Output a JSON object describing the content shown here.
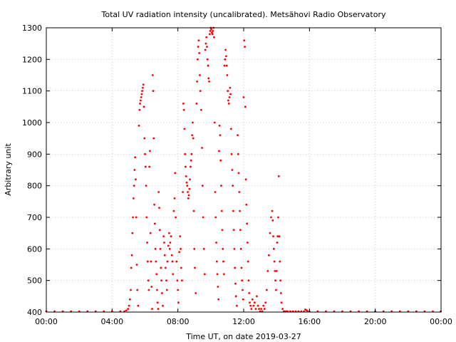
{
  "chart_data": {
    "type": "scatter",
    "title": "Total UV radiation intensity (uncalibrated). Metsähovi Radio Observatory",
    "xlabel": "Time UT, on date 2019-03-27",
    "ylabel": "Arbitrary unit",
    "xlim": [
      "00:00",
      "00:00"
    ],
    "ylim": [
      400,
      1300
    ],
    "x_ticks": [
      "00:00",
      "04:00",
      "08:00",
      "12:00",
      "16:00",
      "20:00",
      "00:00"
    ],
    "y_ticks": [
      400,
      500,
      600,
      700,
      800,
      900,
      1000,
      1100,
      1200,
      1300
    ],
    "grid": true,
    "marker_color": "#ff0000",
    "series": [
      {
        "points": [
          [
            "00:00",
            400
          ],
          [
            "00:30",
            400
          ],
          [
            "01:00",
            400
          ],
          [
            "01:30",
            400
          ],
          [
            "02:00",
            400
          ],
          [
            "02:30",
            400
          ],
          [
            "03:00",
            400
          ],
          [
            "03:30",
            400
          ],
          [
            "04:00",
            400
          ],
          [
            "04:30",
            400
          ],
          [
            "04:45",
            402
          ],
          [
            "04:52",
            405
          ],
          [
            "04:58",
            410
          ],
          [
            "05:02",
            420
          ],
          [
            "05:05",
            440
          ],
          [
            "05:08",
            470
          ],
          [
            "05:10",
            540
          ],
          [
            "05:12",
            580
          ],
          [
            "05:14",
            650
          ],
          [
            "05:16",
            700
          ],
          [
            "05:18",
            760
          ],
          [
            "05:20",
            800
          ],
          [
            "05:22",
            850
          ],
          [
            "05:24",
            890
          ],
          [
            "05:26",
            820
          ],
          [
            "05:28",
            700
          ],
          [
            "05:30",
            550
          ],
          [
            "05:32",
            470
          ],
          [
            "05:35",
            420
          ],
          [
            "05:38",
            990
          ],
          [
            "05:40",
            1040
          ],
          [
            "05:42",
            1060
          ],
          [
            "05:44",
            1070
          ],
          [
            "05:46",
            1080
          ],
          [
            "05:48",
            1090
          ],
          [
            "05:50",
            1100
          ],
          [
            "05:52",
            1110
          ],
          [
            "05:54",
            1120
          ],
          [
            "05:56",
            1050
          ],
          [
            "05:58",
            950
          ],
          [
            "06:00",
            900
          ],
          [
            "06:02",
            860
          ],
          [
            "06:04",
            800
          ],
          [
            "06:06",
            700
          ],
          [
            "06:08",
            620
          ],
          [
            "06:10",
            560
          ],
          [
            "06:12",
            500
          ],
          [
            "06:14",
            470
          ],
          [
            "06:16",
            860
          ],
          [
            "06:18",
            910
          ],
          [
            "06:20",
            650
          ],
          [
            "06:22",
            560
          ],
          [
            "06:24",
            480
          ],
          [
            "06:26",
            410
          ],
          [
            "06:28",
            1150
          ],
          [
            "06:30",
            1100
          ],
          [
            "06:32",
            950
          ],
          [
            "06:34",
            740
          ],
          [
            "06:36",
            680
          ],
          [
            "06:38",
            600
          ],
          [
            "06:40",
            560
          ],
          [
            "06:42",
            520
          ],
          [
            "06:44",
            470
          ],
          [
            "06:46",
            430
          ],
          [
            "06:48",
            410
          ],
          [
            "06:50",
            780
          ],
          [
            "06:52",
            730
          ],
          [
            "06:54",
            660
          ],
          [
            "06:56",
            600
          ],
          [
            "06:58",
            540
          ],
          [
            "07:00",
            500
          ],
          [
            "07:02",
            460
          ],
          [
            "07:05",
            420
          ],
          [
            "07:08",
            640
          ],
          [
            "07:10",
            620
          ],
          [
            "07:12",
            580
          ],
          [
            "07:15",
            540
          ],
          [
            "07:18",
            500
          ],
          [
            "07:20",
            470
          ],
          [
            "07:22",
            560
          ],
          [
            "07:25",
            610
          ],
          [
            "07:28",
            650
          ],
          [
            "07:30",
            600
          ],
          [
            "07:32",
            620
          ],
          [
            "07:35",
            640
          ],
          [
            "07:38",
            580
          ],
          [
            "07:40",
            560
          ],
          [
            "07:42",
            520
          ],
          [
            "07:45",
            720
          ],
          [
            "07:48",
            760
          ],
          [
            "07:50",
            840
          ],
          [
            "07:52",
            700
          ],
          [
            "07:55",
            560
          ],
          [
            "07:58",
            500
          ],
          [
            "08:00",
            470
          ],
          [
            "08:02",
            430
          ],
          [
            "08:05",
            590
          ],
          [
            "08:08",
            640
          ],
          [
            "08:10",
            600
          ],
          [
            "08:12",
            540
          ],
          [
            "08:15",
            500
          ],
          [
            "08:18",
            780
          ],
          [
            "08:20",
            1060
          ],
          [
            "08:22",
            1040
          ],
          [
            "08:24",
            980
          ],
          [
            "08:26",
            900
          ],
          [
            "08:28",
            860
          ],
          [
            "08:30",
            830
          ],
          [
            "08:32",
            810
          ],
          [
            "08:34",
            800
          ],
          [
            "08:36",
            780
          ],
          [
            "08:38",
            760
          ],
          [
            "08:40",
            770
          ],
          [
            "08:42",
            790
          ],
          [
            "08:44",
            820
          ],
          [
            "08:46",
            860
          ],
          [
            "08:48",
            880
          ],
          [
            "08:50",
            900
          ],
          [
            "08:52",
            960
          ],
          [
            "08:54",
            1000
          ],
          [
            "08:56",
            950
          ],
          [
            "08:58",
            720
          ],
          [
            "09:00",
            600
          ],
          [
            "09:02",
            540
          ],
          [
            "09:05",
            460
          ],
          [
            "09:08",
            1060
          ],
          [
            "09:10",
            1130
          ],
          [
            "09:12",
            1200
          ],
          [
            "09:14",
            1240
          ],
          [
            "09:16",
            1260
          ],
          [
            "09:18",
            1220
          ],
          [
            "09:20",
            1150
          ],
          [
            "09:22",
            1100
          ],
          [
            "09:25",
            1040
          ],
          [
            "09:28",
            920
          ],
          [
            "09:30",
            800
          ],
          [
            "09:32",
            700
          ],
          [
            "09:35",
            600
          ],
          [
            "09:38",
            520
          ],
          [
            "09:40",
            1230
          ],
          [
            "09:42",
            1250
          ],
          [
            "09:44",
            1270
          ],
          [
            "09:46",
            1240
          ],
          [
            "09:48",
            1200
          ],
          [
            "09:50",
            1180
          ],
          [
            "09:52",
            1140
          ],
          [
            "09:54",
            1130
          ],
          [
            "09:56",
            1280
          ],
          [
            "09:58",
            1290
          ],
          [
            "10:00",
            1300
          ],
          [
            "10:02",
            1295
          ],
          [
            "10:04",
            1285
          ],
          [
            "10:06",
            1280
          ],
          [
            "10:08",
            1290
          ],
          [
            "10:10",
            1300
          ],
          [
            "10:12",
            1270
          ],
          [
            "10:14",
            1000
          ],
          [
            "10:16",
            780
          ],
          [
            "10:18",
            700
          ],
          [
            "10:20",
            620
          ],
          [
            "10:22",
            560
          ],
          [
            "10:24",
            520
          ],
          [
            "10:26",
            480
          ],
          [
            "10:28",
            440
          ],
          [
            "10:30",
            910
          ],
          [
            "10:32",
            990
          ],
          [
            "10:34",
            960
          ],
          [
            "10:36",
            880
          ],
          [
            "10:38",
            800
          ],
          [
            "10:40",
            720
          ],
          [
            "10:42",
            660
          ],
          [
            "10:44",
            600
          ],
          [
            "10:46",
            560
          ],
          [
            "10:48",
            520
          ],
          [
            "10:50",
            1180
          ],
          [
            "10:52",
            1200
          ],
          [
            "10:54",
            1230
          ],
          [
            "10:56",
            1210
          ],
          [
            "10:58",
            1180
          ],
          [
            "11:00",
            1150
          ],
          [
            "11:02",
            1100
          ],
          [
            "11:04",
            1070
          ],
          [
            "11:06",
            1060
          ],
          [
            "11:08",
            1080
          ],
          [
            "11:10",
            1110
          ],
          [
            "11:12",
            1090
          ],
          [
            "11:14",
            980
          ],
          [
            "11:16",
            900
          ],
          [
            "11:18",
            850
          ],
          [
            "11:20",
            800
          ],
          [
            "11:22",
            720
          ],
          [
            "11:24",
            660
          ],
          [
            "11:26",
            600
          ],
          [
            "11:28",
            540
          ],
          [
            "11:30",
            490
          ],
          [
            "11:32",
            450
          ],
          [
            "11:35",
            420
          ],
          [
            "11:38",
            960
          ],
          [
            "11:40",
            900
          ],
          [
            "11:42",
            840
          ],
          [
            "11:44",
            780
          ],
          [
            "11:46",
            720
          ],
          [
            "11:48",
            660
          ],
          [
            "11:50",
            600
          ],
          [
            "11:52",
            540
          ],
          [
            "11:54",
            500
          ],
          [
            "11:56",
            470
          ],
          [
            "11:58",
            440
          ],
          [
            "12:00",
            1080
          ],
          [
            "12:02",
            1260
          ],
          [
            "12:04",
            1240
          ],
          [
            "12:06",
            1050
          ],
          [
            "12:08",
            820
          ],
          [
            "12:10",
            740
          ],
          [
            "12:12",
            680
          ],
          [
            "12:14",
            620
          ],
          [
            "12:16",
            560
          ],
          [
            "12:18",
            500
          ],
          [
            "12:20",
            460
          ],
          [
            "12:22",
            430
          ],
          [
            "12:25",
            420
          ],
          [
            "12:28",
            410
          ],
          [
            "12:32",
            440
          ],
          [
            "12:36",
            420
          ],
          [
            "12:40",
            430
          ],
          [
            "12:44",
            410
          ],
          [
            "12:48",
            450
          ],
          [
            "12:52",
            420
          ],
          [
            "12:56",
            410
          ],
          [
            "13:00",
            400
          ],
          [
            "13:04",
            410
          ],
          [
            "13:08",
            400
          ],
          [
            "13:12",
            420
          ],
          [
            "13:16",
            410
          ],
          [
            "13:20",
            430
          ],
          [
            "13:24",
            470
          ],
          [
            "13:28",
            530
          ],
          [
            "13:32",
            580
          ],
          [
            "13:36",
            650
          ],
          [
            "13:40",
            700
          ],
          [
            "13:44",
            720
          ],
          [
            "13:46",
            690
          ],
          [
            "13:48",
            640
          ],
          [
            "13:50",
            600
          ],
          [
            "13:52",
            560
          ],
          [
            "13:54",
            530
          ],
          [
            "13:56",
            500
          ],
          [
            "13:58",
            470
          ],
          [
            "14:00",
            530
          ],
          [
            "14:02",
            620
          ],
          [
            "14:04",
            640
          ],
          [
            "14:06",
            700
          ],
          [
            "14:08",
            830
          ],
          [
            "14:10",
            640
          ],
          [
            "14:12",
            560
          ],
          [
            "14:14",
            500
          ],
          [
            "14:16",
            460
          ],
          [
            "14:18",
            430
          ],
          [
            "14:22",
            410
          ],
          [
            "14:26",
            400
          ],
          [
            "14:30",
            400
          ],
          [
            "14:35",
            402
          ],
          [
            "14:40",
            400
          ],
          [
            "14:50",
            400
          ],
          [
            "15:00",
            400
          ],
          [
            "15:10",
            400
          ],
          [
            "15:20",
            400
          ],
          [
            "15:30",
            400
          ],
          [
            "15:40",
            402
          ],
          [
            "15:45",
            408
          ],
          [
            "15:48",
            406
          ],
          [
            "15:52",
            404
          ],
          [
            "16:00",
            400
          ],
          [
            "16:30",
            400
          ],
          [
            "17:00",
            400
          ],
          [
            "17:30",
            400
          ],
          [
            "18:00",
            400
          ],
          [
            "18:30",
            400
          ],
          [
            "19:00",
            400
          ],
          [
            "19:30",
            400
          ],
          [
            "20:00",
            400
          ],
          [
            "20:30",
            400
          ],
          [
            "21:00",
            400
          ],
          [
            "21:30",
            400
          ],
          [
            "22:00",
            400
          ],
          [
            "22:30",
            400
          ],
          [
            "23:00",
            400
          ],
          [
            "23:30",
            400
          ],
          [
            "23:59",
            400
          ]
        ]
      }
    ]
  }
}
